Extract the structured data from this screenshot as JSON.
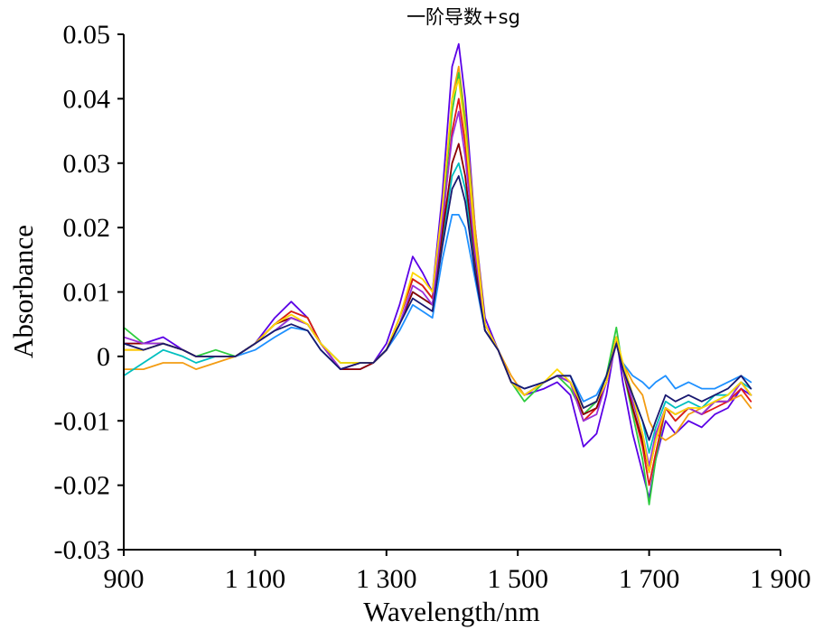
{
  "chart_data": {
    "type": "line",
    "title": "一阶导数+sg",
    "xlabel": "Wavelength/nm",
    "ylabel": "Absorbance",
    "xlim": [
      900,
      1900
    ],
    "ylim": [
      -0.03,
      0.05
    ],
    "x_ticks": [
      900,
      1100,
      1300,
      1500,
      1700,
      1900
    ],
    "x_tick_labels": [
      "900",
      "1 100",
      "1 300",
      "1 500",
      "1 700",
      "1 900"
    ],
    "y_ticks": [
      -0.03,
      -0.02,
      -0.01,
      0,
      0.01,
      0.02,
      0.03,
      0.04,
      0.05
    ],
    "y_tick_labels": [
      "-0.03",
      "-0.02",
      "-0.01",
      "0",
      "0.01",
      "0.02",
      "0.03",
      "0.04",
      "0.05"
    ],
    "grid": false,
    "legend": "none",
    "x": [
      900,
      930,
      960,
      990,
      1010,
      1040,
      1070,
      1100,
      1130,
      1155,
      1180,
      1200,
      1230,
      1260,
      1280,
      1300,
      1320,
      1340,
      1355,
      1370,
      1385,
      1400,
      1410,
      1420,
      1435,
      1450,
      1470,
      1490,
      1510,
      1540,
      1560,
      1580,
      1600,
      1620,
      1635,
      1650,
      1660,
      1675,
      1690,
      1700,
      1710,
      1725,
      1740,
      1760,
      1780,
      1800,
      1820,
      1840,
      1855
    ],
    "series": [
      {
        "color": "#5b00e6",
        "values": [
          0.002,
          0.002,
          0.003,
          0.001,
          0.0,
          0.0,
          0.0,
          0.002,
          0.006,
          0.0085,
          0.006,
          0.002,
          -0.002,
          -0.002,
          -0.001,
          0.002,
          0.008,
          0.0155,
          0.013,
          0.01,
          0.025,
          0.045,
          0.0485,
          0.04,
          0.02,
          0.006,
          0.001,
          -0.004,
          -0.006,
          -0.005,
          -0.004,
          -0.006,
          -0.014,
          -0.012,
          -0.006,
          0.003,
          -0.004,
          -0.012,
          -0.018,
          -0.022,
          -0.016,
          -0.01,
          -0.012,
          -0.01,
          -0.011,
          -0.009,
          -0.008,
          -0.005,
          -0.006
        ]
      },
      {
        "color": "#f39c12",
        "values": [
          -0.002,
          -0.002,
          -0.001,
          -0.001,
          -0.002,
          -0.001,
          0.0,
          0.002,
          0.005,
          0.006,
          0.005,
          0.002,
          -0.001,
          -0.001,
          -0.001,
          0.001,
          0.006,
          0.012,
          0.011,
          0.009,
          0.022,
          0.04,
          0.045,
          0.037,
          0.02,
          0.005,
          0.001,
          -0.003,
          -0.006,
          -0.004,
          -0.003,
          -0.004,
          -0.008,
          -0.007,
          -0.004,
          0.002,
          -0.001,
          -0.004,
          -0.006,
          -0.01,
          -0.012,
          -0.013,
          -0.012,
          -0.009,
          -0.008,
          -0.007,
          -0.007,
          -0.006,
          -0.008
        ]
      },
      {
        "color": "#1e90ff",
        "values": [
          0.002,
          0.001,
          0.002,
          0.001,
          0.0,
          0.0,
          0.0,
          0.001,
          0.003,
          0.0045,
          0.004,
          0.001,
          -0.002,
          -0.001,
          -0.001,
          0.001,
          0.004,
          0.008,
          0.007,
          0.006,
          0.015,
          0.022,
          0.022,
          0.02,
          0.012,
          0.004,
          0.001,
          -0.004,
          -0.005,
          -0.004,
          -0.003,
          -0.003,
          -0.007,
          -0.006,
          -0.003,
          0.002,
          -0.001,
          -0.003,
          -0.004,
          -0.005,
          -0.004,
          -0.003,
          -0.005,
          -0.004,
          -0.005,
          -0.005,
          -0.004,
          -0.003,
          -0.004
        ]
      },
      {
        "color": "#2ecc40",
        "values": [
          0.0045,
          0.002,
          0.002,
          0.001,
          0.0,
          0.001,
          0.0,
          0.002,
          0.005,
          0.007,
          0.006,
          0.002,
          -0.002,
          -0.001,
          -0.001,
          0.001,
          0.006,
          0.012,
          0.011,
          0.009,
          0.022,
          0.038,
          0.044,
          0.036,
          0.018,
          0.005,
          0.001,
          -0.004,
          -0.007,
          -0.004,
          -0.003,
          -0.005,
          -0.009,
          -0.007,
          -0.003,
          0.0045,
          -0.002,
          -0.009,
          -0.016,
          -0.023,
          -0.016,
          -0.008,
          -0.01,
          -0.008,
          -0.009,
          -0.007,
          -0.006,
          -0.004,
          -0.006
        ]
      },
      {
        "color": "#e01818",
        "values": [
          0.001,
          0.001,
          0.002,
          0.001,
          0.0,
          0.0,
          0.0,
          0.002,
          0.005,
          0.007,
          0.006,
          0.002,
          -0.002,
          -0.001,
          -0.001,
          0.001,
          0.006,
          0.012,
          0.011,
          0.009,
          0.02,
          0.035,
          0.04,
          0.033,
          0.017,
          0.005,
          0.001,
          -0.004,
          -0.006,
          -0.004,
          -0.003,
          -0.004,
          -0.01,
          -0.008,
          -0.004,
          0.003,
          -0.002,
          -0.008,
          -0.014,
          -0.02,
          -0.015,
          -0.008,
          -0.01,
          -0.008,
          -0.009,
          -0.008,
          -0.007,
          -0.005,
          -0.007
        ]
      },
      {
        "color": "#00bfbf",
        "values": [
          -0.003,
          -0.001,
          0.001,
          0.0,
          -0.001,
          0.0,
          0.0,
          0.002,
          0.004,
          0.006,
          0.005,
          0.002,
          -0.001,
          -0.001,
          -0.001,
          0.001,
          0.005,
          0.01,
          0.009,
          0.008,
          0.018,
          0.028,
          0.03,
          0.026,
          0.014,
          0.004,
          0.001,
          -0.004,
          -0.006,
          -0.004,
          -0.003,
          -0.004,
          -0.008,
          -0.007,
          -0.003,
          0.002,
          -0.001,
          -0.006,
          -0.01,
          -0.015,
          -0.011,
          -0.007,
          -0.008,
          -0.007,
          -0.008,
          -0.006,
          -0.006,
          -0.004,
          -0.005
        ]
      },
      {
        "color": "#8b0000",
        "values": [
          0.002,
          0.002,
          0.002,
          0.001,
          0.0,
          0.0,
          0.0,
          0.002,
          0.005,
          0.006,
          0.005,
          0.002,
          -0.002,
          -0.002,
          -0.001,
          0.001,
          0.005,
          0.01,
          0.009,
          0.008,
          0.019,
          0.03,
          0.033,
          0.028,
          0.015,
          0.004,
          0.001,
          -0.004,
          -0.006,
          -0.004,
          -0.003,
          -0.004,
          -0.009,
          -0.008,
          -0.004,
          0.003,
          -0.002,
          -0.008,
          -0.013,
          -0.018,
          -0.013,
          -0.008,
          -0.009,
          -0.008,
          -0.009,
          -0.007,
          -0.007,
          -0.004,
          -0.006
        ]
      },
      {
        "color": "#9b30d9",
        "values": [
          0.003,
          0.002,
          0.002,
          0.001,
          0.0,
          0.0,
          0.0,
          0.002,
          0.004,
          0.006,
          0.005,
          0.002,
          -0.002,
          -0.001,
          -0.001,
          0.001,
          0.005,
          0.011,
          0.01,
          0.008,
          0.021,
          0.034,
          0.038,
          0.031,
          0.016,
          0.005,
          0.001,
          -0.004,
          -0.006,
          -0.004,
          -0.003,
          -0.004,
          -0.01,
          -0.009,
          -0.004,
          0.002,
          -0.002,
          -0.007,
          -0.012,
          -0.017,
          -0.012,
          -0.008,
          -0.009,
          -0.008,
          -0.009,
          -0.007,
          -0.007,
          -0.004,
          -0.006
        ]
      },
      {
        "color": "#ffd700",
        "values": [
          0.001,
          0.001,
          0.002,
          0.001,
          0.0,
          0.0,
          0.0,
          0.002,
          0.005,
          0.0065,
          0.005,
          0.002,
          -0.001,
          -0.001,
          -0.001,
          0.001,
          0.006,
          0.013,
          0.012,
          0.01,
          0.023,
          0.04,
          0.043,
          0.035,
          0.018,
          0.005,
          0.001,
          -0.004,
          -0.006,
          -0.004,
          -0.002,
          -0.004,
          -0.008,
          -0.007,
          -0.004,
          0.003,
          -0.001,
          -0.006,
          -0.012,
          -0.018,
          -0.013,
          -0.008,
          -0.009,
          -0.008,
          -0.008,
          -0.007,
          -0.006,
          -0.004,
          -0.006
        ]
      },
      {
        "color": "#191970",
        "values": [
          0.002,
          0.001,
          0.002,
          0.001,
          0.0,
          0.0,
          0.0,
          0.002,
          0.004,
          0.005,
          0.004,
          0.001,
          -0.002,
          -0.001,
          -0.001,
          0.001,
          0.005,
          0.009,
          0.008,
          0.007,
          0.017,
          0.026,
          0.028,
          0.024,
          0.013,
          0.004,
          0.001,
          -0.004,
          -0.005,
          -0.004,
          -0.003,
          -0.003,
          -0.008,
          -0.007,
          -0.003,
          0.002,
          -0.002,
          -0.006,
          -0.01,
          -0.013,
          -0.01,
          -0.006,
          -0.007,
          -0.006,
          -0.007,
          -0.006,
          -0.005,
          -0.003,
          -0.005
        ]
      }
    ]
  }
}
